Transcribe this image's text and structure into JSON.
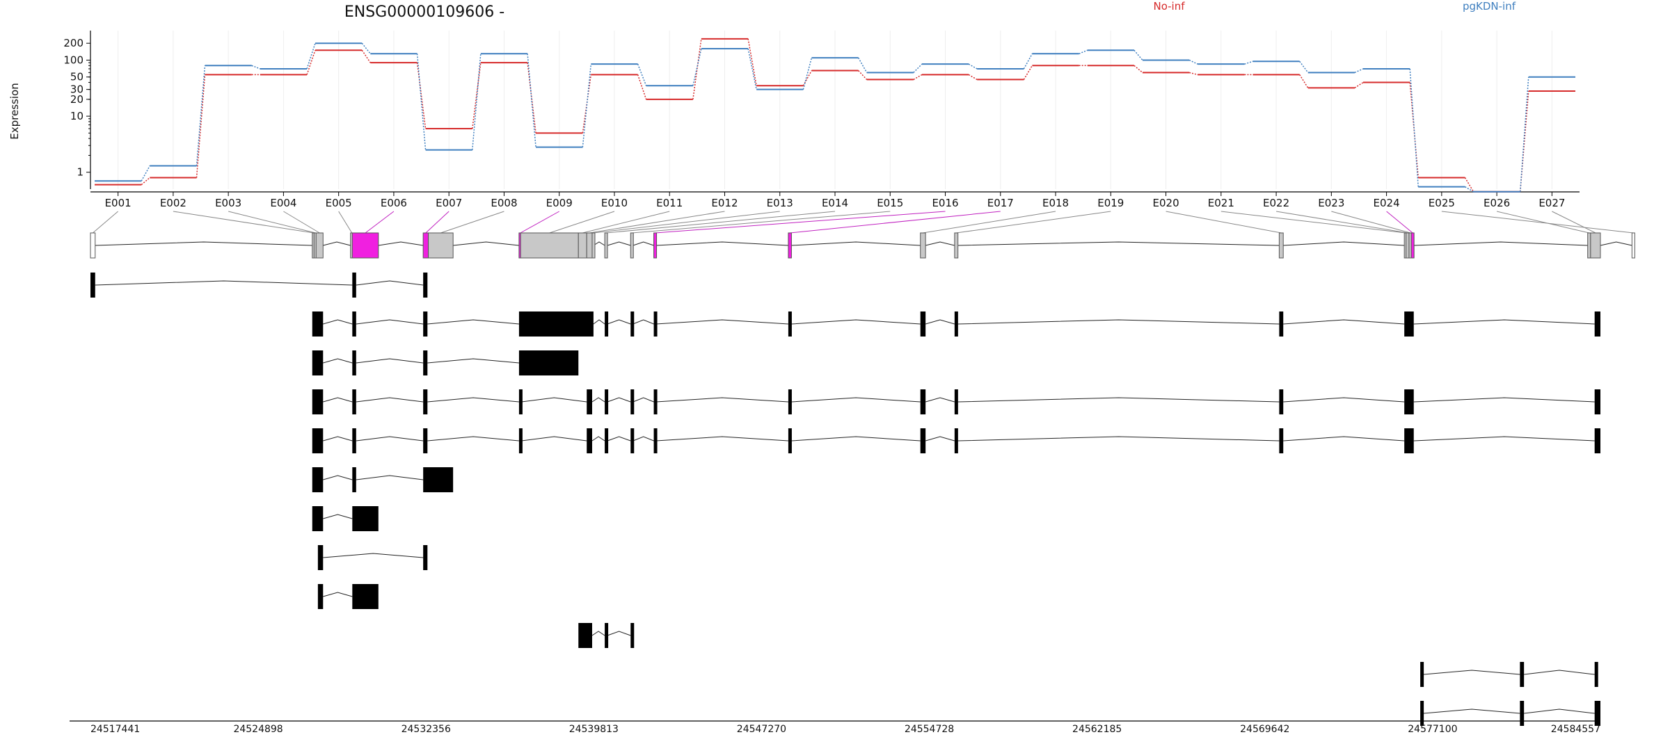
{
  "title": "ENSG00000109606 -",
  "ylabel": "Expression",
  "colors": {
    "no_inf": "#d62a2a",
    "pg_inf": "#3f7fbf",
    "highlight": "#f020e0",
    "exon_gray": "#c8c8c8",
    "transcript": "#000000"
  },
  "chart_data": {
    "type": "line",
    "title": "ENSG00000109606 -",
    "ylabel": "Expression",
    "yscale": "log",
    "ylim": [
      0.5,
      300
    ],
    "yticks": [
      1,
      10,
      20,
      30,
      50,
      100,
      200
    ],
    "yticklabels": [
      "1",
      "10",
      "20",
      "30",
      "50",
      "100",
      "200"
    ],
    "categories": [
      "E001",
      "E002",
      "E003",
      "E004",
      "E005",
      "E006",
      "E007",
      "E008",
      "E009",
      "E010",
      "E011",
      "E012",
      "E013",
      "E014",
      "E015",
      "E016",
      "E017",
      "E018",
      "E019",
      "E020",
      "E021",
      "E022",
      "E023",
      "E024",
      "E025",
      "E026",
      "E027"
    ],
    "series": [
      {
        "name": "No-inf",
        "color": "#d62a2a",
        "values": [
          0.6,
          0.8,
          55,
          55,
          150,
          90,
          6,
          90,
          5,
          55,
          20,
          240,
          35,
          65,
          45,
          55,
          45,
          80,
          80,
          60,
          55,
          55,
          32,
          40,
          0.8,
          0.45,
          28
        ]
      },
      {
        "name": "pgKDN-inf",
        "color": "#3f7fbf",
        "values": [
          0.7,
          1.3,
          80,
          70,
          200,
          130,
          2.5,
          130,
          2.8,
          85,
          35,
          160,
          30,
          110,
          60,
          85,
          70,
          130,
          150,
          100,
          85,
          95,
          60,
          70,
          0.55,
          0.45,
          50
        ]
      }
    ],
    "highlighted_exons": [
      "E006",
      "E007",
      "E009",
      "E016",
      "E017",
      "E024"
    ],
    "genomic_axis": {
      "range": [
        24517441,
        24584557
      ],
      "ticks": [
        24517441,
        24524898,
        24532356,
        24539813,
        24547270,
        24554728,
        24562185,
        24569642,
        24577100,
        24584557
      ],
      "ticklabels": [
        "24517441",
        "24524898",
        "24532356",
        "24539813",
        "24547270",
        "24554728",
        "24562185",
        "24569642",
        "24577100",
        "24584557"
      ]
    },
    "exon_model": [
      {
        "id": "E001",
        "start": 24517441,
        "end": 24517650
      },
      {
        "id": "E002",
        "start": 24527300,
        "end": 24527380
      },
      {
        "id": "E003",
        "start": 24527380,
        "end": 24527470
      },
      {
        "id": "E004",
        "start": 24527470,
        "end": 24527780
      },
      {
        "id": "E005",
        "start": 24529000,
        "end": 24529080
      },
      {
        "id": "E006",
        "start": 24529080,
        "end": 24530240
      },
      {
        "id": "E007",
        "start": 24532230,
        "end": 24532460
      },
      {
        "id": "E008",
        "start": 24532460,
        "end": 24533560
      },
      {
        "id": "E009",
        "start": 24536490,
        "end": 24536560
      },
      {
        "id": "E010",
        "start": 24536560,
        "end": 24539130
      },
      {
        "id": "E011",
        "start": 24539130,
        "end": 24539500
      },
      {
        "id": "E012",
        "start": 24539500,
        "end": 24539740
      },
      {
        "id": "E013",
        "start": 24539740,
        "end": 24539800
      },
      {
        "id": "E014",
        "start": 24540300,
        "end": 24540420
      },
      {
        "id": "E015",
        "start": 24541450,
        "end": 24541560
      },
      {
        "id": "E016",
        "start": 24542480,
        "end": 24542580
      },
      {
        "id": "E017",
        "start": 24548460,
        "end": 24548600
      },
      {
        "id": "E018",
        "start": 24554330,
        "end": 24554560
      },
      {
        "id": "E019",
        "start": 24555850,
        "end": 24556000
      },
      {
        "id": "E020",
        "start": 24570280,
        "end": 24570460
      },
      {
        "id": "E021",
        "start": 24575840,
        "end": 24575920
      },
      {
        "id": "E022",
        "start": 24575920,
        "end": 24576050
      },
      {
        "id": "E023",
        "start": 24576050,
        "end": 24576150
      },
      {
        "id": "E024",
        "start": 24576150,
        "end": 24576260
      },
      {
        "id": "E025",
        "start": 24585960,
        "end": 24586000
      },
      {
        "id": "E026",
        "start": 24583990,
        "end": 24584120
      },
      {
        "id": "E027",
        "start": 24584120,
        "end": 24584557
      }
    ],
    "transcripts": [
      [
        [
          24517441,
          24517650
        ],
        [
          24529080,
          24529250
        ],
        [
          24532230,
          24532420
        ]
      ],
      [
        [
          24527300,
          24527780
        ],
        [
          24529080,
          24529250
        ],
        [
          24532230,
          24532420
        ],
        [
          24536490,
          24539800
        ],
        [
          24540300,
          24540420
        ],
        [
          24541450,
          24541560
        ],
        [
          24542480,
          24542580
        ],
        [
          24548460,
          24548600
        ],
        [
          24554330,
          24554560
        ],
        [
          24555850,
          24556000
        ],
        [
          24570280,
          24570460
        ],
        [
          24575840,
          24576260
        ],
        [
          24584300,
          24584557
        ]
      ],
      [
        [
          24527300,
          24527780
        ],
        [
          24529080,
          24529250
        ],
        [
          24532230,
          24532420
        ],
        [
          24536490,
          24539130
        ]
      ],
      [
        [
          24527300,
          24527780
        ],
        [
          24529080,
          24529250
        ],
        [
          24532230,
          24532420
        ],
        [
          24536490,
          24536600
        ],
        [
          24539500,
          24539740
        ],
        [
          24540300,
          24540420
        ],
        [
          24541450,
          24541560
        ],
        [
          24542480,
          24542580
        ],
        [
          24548460,
          24548600
        ],
        [
          24554330,
          24554560
        ],
        [
          24555850,
          24556000
        ],
        [
          24570280,
          24570460
        ],
        [
          24575840,
          24576260
        ],
        [
          24584300,
          24584557
        ]
      ],
      [
        [
          24527300,
          24527780
        ],
        [
          24529080,
          24529250
        ],
        [
          24532230,
          24532420
        ],
        [
          24536490,
          24536600
        ],
        [
          24539500,
          24539740
        ],
        [
          24540300,
          24540420
        ],
        [
          24541450,
          24541560
        ],
        [
          24542480,
          24542580
        ],
        [
          24548460,
          24548600
        ],
        [
          24554330,
          24554560
        ],
        [
          24555850,
          24556000
        ],
        [
          24570280,
          24570460
        ],
        [
          24575840,
          24576260
        ],
        [
          24584300,
          24584557
        ]
      ],
      [
        [
          24527300,
          24527780
        ],
        [
          24529080,
          24529250
        ],
        [
          24532230,
          24533560
        ]
      ],
      [
        [
          24527300,
          24527780
        ],
        [
          24529080,
          24530240
        ]
      ],
      [
        [
          24527550,
          24527780
        ],
        [
          24532230,
          24532420
        ]
      ],
      [
        [
          24527550,
          24527780
        ],
        [
          24529080,
          24530240
        ]
      ],
      [
        [
          24539130,
          24539740
        ],
        [
          24540300,
          24540420
        ],
        [
          24541450,
          24541560
        ]
      ],
      [
        [
          24576550,
          24576700
        ],
        [
          24580980,
          24581160
        ],
        [
          24584300,
          24584420
        ]
      ],
      [
        [
          24576550,
          24576700
        ],
        [
          24580980,
          24581160
        ],
        [
          24584300,
          24584557
        ]
      ]
    ]
  },
  "legend": {
    "no_inf": "No-inf",
    "pg_inf": "pgKDN-inf"
  }
}
